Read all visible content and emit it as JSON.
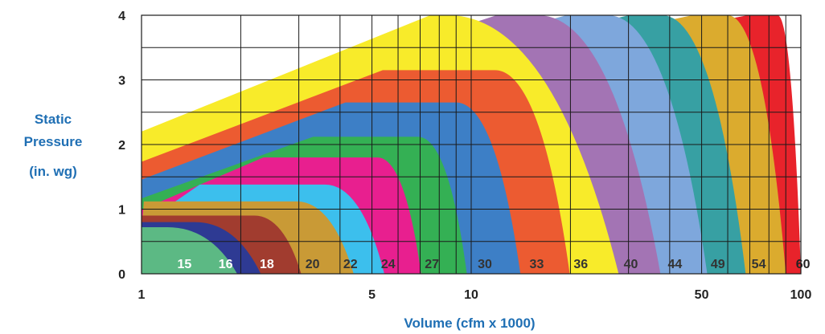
{
  "chart_data": {
    "type": "area",
    "xlabel": "Volume (cfm x 1000)",
    "ylabel": [
      "Static",
      "Pressure",
      "(in. wg)"
    ],
    "x_scale": "log",
    "xlim": [
      1,
      100
    ],
    "ylim": [
      0,
      4
    ],
    "x_ticks": [
      1,
      5,
      10,
      50,
      100
    ],
    "y_ticks": [
      0,
      1,
      2,
      3,
      4
    ],
    "grid": true,
    "series": [
      {
        "name": "15",
        "color": "#5cb984",
        "label_color": "#ffffff",
        "max_pressure": 0.72,
        "x_start": 1,
        "flat_end": 1.2,
        "x_end": 1.95
      },
      {
        "name": "16",
        "color": "#2e3a93",
        "label_color": "#ffffff",
        "max_pressure": 0.8,
        "x_start": 1,
        "flat_end": 1.45,
        "x_end": 2.3
      },
      {
        "name": "18",
        "color": "#a13c2f",
        "label_color": "#ffffff",
        "max_pressure": 0.9,
        "x_start": 1,
        "flat_end": 2.2,
        "x_end": 3.05
      },
      {
        "name": "20",
        "color": "#c99a36",
        "label_color": "#333333",
        "max_pressure": 1.12,
        "x_start": 1.15,
        "flat_end": 2.95,
        "x_end": 4.4
      },
      {
        "name": "22",
        "color": "#3cbfed",
        "label_color": "#333333",
        "max_pressure": 1.38,
        "x_start": 1.7,
        "flat_end": 3.6,
        "x_end": 5.45
      },
      {
        "name": "24",
        "color": "#e81f8f",
        "label_color": "#333333",
        "max_pressure": 1.8,
        "x_start": 2.65,
        "flat_end": 5.2,
        "x_end": 7.05
      },
      {
        "name": "27",
        "color": "#34b054",
        "label_color": "#333333",
        "max_pressure": 2.12,
        "x_start": 3.75,
        "flat_end": 6.9,
        "x_end": 9.7
      },
      {
        "name": "30",
        "color": "#3d7fc6",
        "label_color": "#333333",
        "max_pressure": 2.65,
        "x_start": 4.7,
        "flat_end": 9.0,
        "x_end": 14.1
      },
      {
        "name": "33",
        "color": "#ec5b31",
        "label_color": "#333333",
        "max_pressure": 3.15,
        "x_start": 6.1,
        "flat_end": 11.8,
        "x_end": 19.9
      },
      {
        "name": "36",
        "color": "#f8eb2a",
        "label_color": "#333333",
        "max_pressure": 4.0,
        "x_start": 8.5,
        "flat_end": 8.5,
        "x_end": 28.0
      },
      {
        "name": "40",
        "color": "#a374b4",
        "label_color": "#333333",
        "max_pressure": 4.0,
        "x_start": 13.5,
        "flat_end": 16.0,
        "x_end": 37.5
      },
      {
        "name": "44",
        "color": "#7ea7dc",
        "label_color": "#333333",
        "max_pressure": 4.0,
        "x_start": 22.0,
        "flat_end": 26.0,
        "x_end": 52.0
      },
      {
        "name": "49",
        "color": "#37a0a3",
        "label_color": "#333333",
        "max_pressure": 4.0,
        "x_start": 34.0,
        "flat_end": 38.0,
        "x_end": 68.0
      },
      {
        "name": "54",
        "color": "#dbab2e",
        "label_color": "#333333",
        "max_pressure": 4.0,
        "x_start": 53.0,
        "flat_end": 60.0,
        "x_end": 90.0
      },
      {
        "name": "60",
        "color": "#e8232b",
        "label_color": "#222222",
        "max_pressure": 4.0,
        "x_start": 78.0,
        "flat_end": 85.0,
        "x_end": 100.0
      }
    ]
  }
}
